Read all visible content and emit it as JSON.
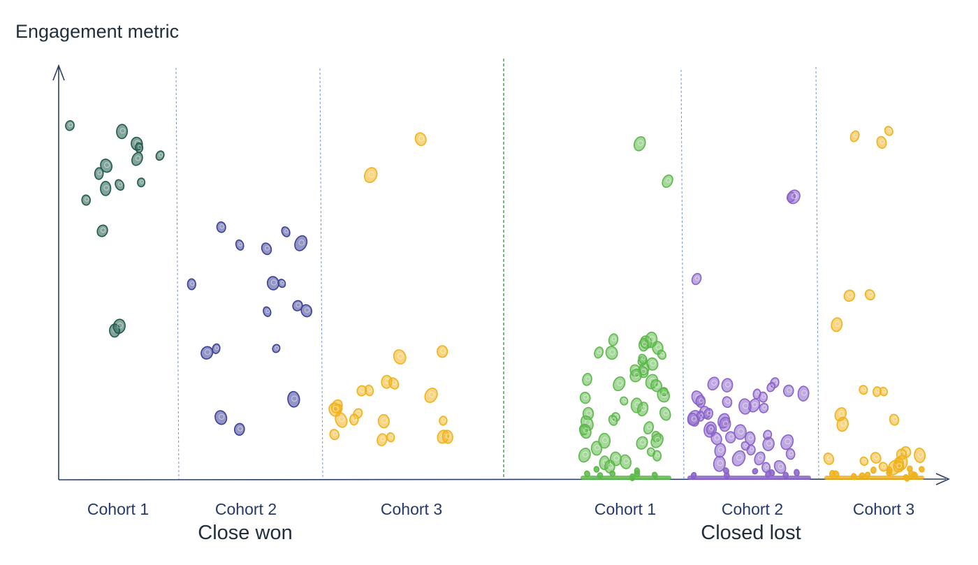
{
  "chart_data": {
    "type": "scatter",
    "title": "",
    "ylabel": "Engagement metric",
    "xlabel": "",
    "ylim": [
      0,
      100
    ],
    "grid": false,
    "groups": [
      {
        "name": "Close won",
        "cohorts": [
          {
            "name": "Cohort 1",
            "color": "#1e5a4a",
            "values": [
              93,
              91,
              88,
              87,
              85,
              84,
              82,
              80,
              78,
              77,
              76,
              73,
              65,
              39,
              40
            ]
          },
          {
            "name": "Cohort 2",
            "color": "#3b3f95",
            "values": [
              66,
              65,
              61,
              60,
              62,
              51,
              51,
              51,
              45,
              44,
              44,
              34,
              34,
              33,
              21,
              16,
              13
            ]
          },
          {
            "name": "Cohort 3",
            "color": "#f0b21b",
            "values": [
              89,
              80,
              33,
              32,
              25,
              25,
              23,
              23,
              22,
              19,
              18,
              18,
              17,
              15,
              15,
              15,
              15,
              11,
              11,
              11,
              11,
              10
            ]
          }
        ]
      },
      {
        "name": "Closed lost",
        "cohorts": [
          {
            "name": "Cohort 1",
            "color": "#5cb84a",
            "values": [
              88,
              78,
              36,
              36,
              36,
              35,
              34,
              33,
              33,
              32,
              31,
              31,
              30,
              29,
              28,
              28,
              27,
              26,
              25,
              25,
              24,
              23,
              22,
              21,
              20,
              19,
              18,
              17,
              17,
              16,
              15,
              14,
              13,
              13,
              12,
              11,
              10,
              10,
              9,
              8,
              7,
              6,
              6,
              5,
              4,
              4,
              3,
              2,
              2,
              1,
              1,
              1,
              0.5,
              0.5,
              0.3
            ]
          },
          {
            "name": "Cohort 2",
            "color": "#8a62c9",
            "values": [
              74,
              74,
              52,
              25,
              25,
              24,
              24,
              23,
              22,
              22,
              21,
              21,
              20,
              20,
              19,
              19,
              18,
              17,
              17,
              16,
              16,
              15,
              15,
              14,
              13,
              13,
              12,
              11,
              11,
              10,
              10,
              9,
              9,
              8,
              7,
              7,
              6,
              5,
              5,
              4,
              3,
              3,
              2,
              2,
              1,
              1,
              1,
              0.5,
              0.5,
              0.3
            ]
          },
          {
            "name": "Cohort 3",
            "color": "#f0b21b",
            "values": [
              91,
              90,
              88,
              48,
              48,
              40,
              23,
              23,
              23,
              17,
              15,
              14,
              7,
              6,
              6,
              5,
              5,
              4,
              4,
              4,
              3,
              3,
              3,
              2,
              2,
              2,
              2,
              1,
              1,
              1,
              1,
              1,
              0.5,
              0.5,
              0.5,
              0.3,
              0.3
            ]
          }
        ]
      }
    ]
  }
}
